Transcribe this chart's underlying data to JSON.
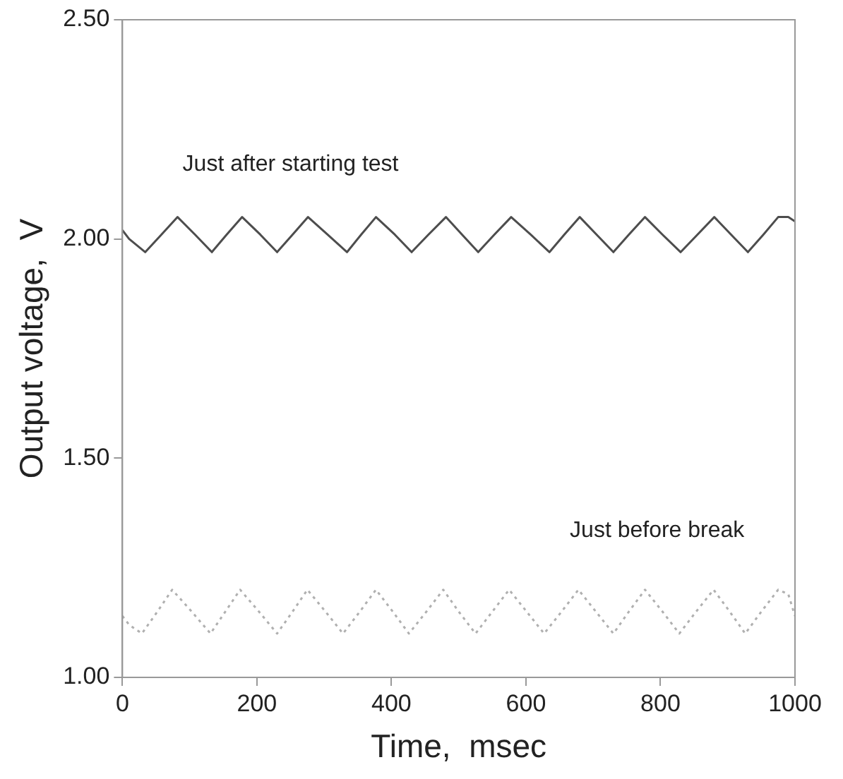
{
  "chart_data": {
    "type": "line",
    "xlabel": "Time,  msec",
    "ylabel": "Output voltage,  V",
    "xlim": [
      0,
      1000
    ],
    "xticks": [
      0,
      200,
      400,
      600,
      800,
      1000
    ],
    "ylim": [
      1.0,
      2.5
    ],
    "yticks": [
      {
        "value": 1.0,
        "label": "1.00"
      },
      {
        "value": 1.5,
        "label": "1.50"
      },
      {
        "value": 2.0,
        "label": "2.00"
      },
      {
        "value": 2.5,
        "label": "2.50"
      }
    ],
    "grid": false,
    "legend": false,
    "marker": "none",
    "annotations": [
      "Just after starting test",
      "Just before break"
    ],
    "series": [
      {
        "color": "#4d4d4d",
        "line_style": "solid",
        "x": [
          0,
          10,
          34,
          58,
          82,
          108,
          133,
          155,
          178,
          205,
          230,
          253,
          276,
          305,
          334,
          355,
          377,
          405,
          430,
          455,
          481,
          505,
          529,
          553,
          578,
          607,
          635,
          657,
          680,
          705,
          730,
          753,
          777,
          803,
          830,
          855,
          880,
          905,
          930,
          953,
          975,
          990,
          1000
        ],
        "values": [
          2.02,
          2.0,
          1.97,
          2.01,
          2.05,
          2.01,
          1.97,
          2.01,
          2.05,
          2.01,
          1.97,
          2.01,
          2.05,
          2.01,
          1.97,
          2.01,
          2.05,
          2.01,
          1.97,
          2.01,
          2.05,
          2.01,
          1.97,
          2.01,
          2.05,
          2.01,
          1.97,
          2.01,
          2.05,
          2.01,
          1.97,
          2.01,
          2.05,
          2.01,
          1.97,
          2.01,
          2.05,
          2.01,
          1.97,
          2.01,
          2.05,
          2.05,
          2.04
        ]
      },
      {
        "color": "#b0b0b0",
        "line_style": "dotted",
        "x": [
          0,
          10,
          29,
          52,
          74,
          103,
          131,
          153,
          175,
          203,
          230,
          253,
          275,
          302,
          328,
          353,
          377,
          402,
          426,
          452,
          477,
          500,
          525,
          550,
          575,
          601,
          627,
          653,
          678,
          704,
          730,
          753,
          777,
          803,
          828,
          853,
          879,
          903,
          926,
          950,
          975,
          990,
          1000
        ],
        "values": [
          1.14,
          1.12,
          1.1,
          1.15,
          1.2,
          1.15,
          1.1,
          1.15,
          1.2,
          1.15,
          1.1,
          1.15,
          1.2,
          1.15,
          1.1,
          1.15,
          1.2,
          1.15,
          1.1,
          1.15,
          1.2,
          1.15,
          1.1,
          1.15,
          1.2,
          1.15,
          1.1,
          1.15,
          1.2,
          1.15,
          1.1,
          1.15,
          1.2,
          1.15,
          1.1,
          1.15,
          1.2,
          1.15,
          1.1,
          1.15,
          1.2,
          1.19,
          1.14
        ]
      }
    ]
  }
}
